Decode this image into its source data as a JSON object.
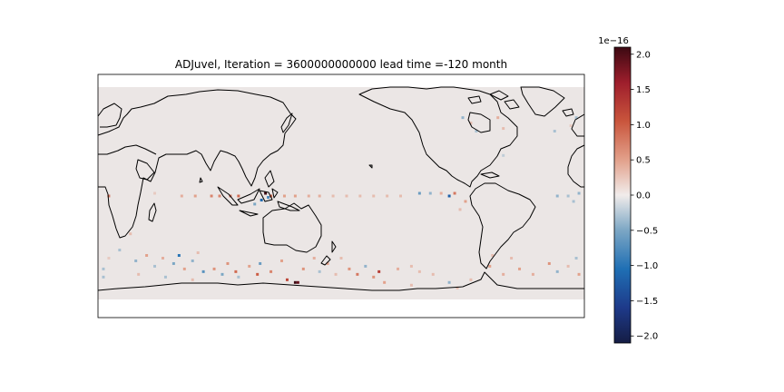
{
  "chart_data": {
    "type": "heatmap",
    "title": "ADJuvel, Iteration = 3600000000000 lead time =-120 month",
    "projection": "PlateCarree, central longitude 180",
    "lon_range": [
      0,
      360
    ],
    "lat_range": [
      -90,
      90
    ],
    "data_lat_range": [
      -78,
      80
    ],
    "background_value": 0.0,
    "colorbar": {
      "colormap": "balance",
      "vmin": -2.1,
      "vmax": 2.1,
      "exponent_label": "1e−16",
      "ticks": [
        2.0,
        1.5,
        1.0,
        0.5,
        0.0,
        -0.5,
        -1.0,
        -1.5,
        -2.0
      ],
      "tick_labels": [
        "2.0",
        "1.5",
        "1.0",
        "0.5",
        "0.0",
        "−0.5",
        "−1.0",
        "−1.5",
        "−2.0"
      ]
    },
    "cells_note": "nonzero grid cells (lon, lat in degrees; value in units of 1e-16)",
    "cells": [
      {
        "lon": 124,
        "lat": 2,
        "value": 2.1
      },
      {
        "lon": 128,
        "lat": 0,
        "value": 0.9
      },
      {
        "lon": 121,
        "lat": -3,
        "value": -1.1
      },
      {
        "lon": 126,
        "lat": -1,
        "value": -0.8
      },
      {
        "lon": 116,
        "lat": -6,
        "value": -0.5
      },
      {
        "lon": 104,
        "lat": 0,
        "value": 0.9
      },
      {
        "lon": 98,
        "lat": 0,
        "value": 0.8
      },
      {
        "lon": 90,
        "lat": 0,
        "value": 0.7
      },
      {
        "lon": 84,
        "lat": 0,
        "value": 0.7
      },
      {
        "lon": 72,
        "lat": 0,
        "value": 0.5
      },
      {
        "lon": 62,
        "lat": 0,
        "value": 0.4
      },
      {
        "lon": 42,
        "lat": 2,
        "value": 0.2
      },
      {
        "lon": 8,
        "lat": 0,
        "value": 0.8
      },
      {
        "lon": 138,
        "lat": 0,
        "value": 0.5
      },
      {
        "lon": 146,
        "lat": 0,
        "value": 0.5
      },
      {
        "lon": 156,
        "lat": 0,
        "value": 0.4
      },
      {
        "lon": 164,
        "lat": 0,
        "value": 0.4
      },
      {
        "lon": 174,
        "lat": 0,
        "value": 0.3
      },
      {
        "lon": 184,
        "lat": 0,
        "value": 0.3
      },
      {
        "lon": 194,
        "lat": 0,
        "value": 0.3
      },
      {
        "lon": 204,
        "lat": 0,
        "value": 0.3
      },
      {
        "lon": 214,
        "lat": 0,
        "value": 0.3
      },
      {
        "lon": 224,
        "lat": 0,
        "value": 0.3
      },
      {
        "lon": 238,
        "lat": 2,
        "value": -0.6
      },
      {
        "lon": 246,
        "lat": 2,
        "value": -0.4
      },
      {
        "lon": 254,
        "lat": 2,
        "value": 0.4
      },
      {
        "lon": 260,
        "lat": 0,
        "value": -1.2
      },
      {
        "lon": 264,
        "lat": 2,
        "value": 0.8
      },
      {
        "lon": 272,
        "lat": -4,
        "value": 0.5
      },
      {
        "lon": 268,
        "lat": -10,
        "value": 0.3
      },
      {
        "lon": 340,
        "lat": 0,
        "value": -0.4
      },
      {
        "lon": 348,
        "lat": 0,
        "value": -0.3
      },
      {
        "lon": 356,
        "lat": 2,
        "value": -0.4
      },
      {
        "lon": 352,
        "lat": -4,
        "value": -0.3
      },
      {
        "lon": 270,
        "lat": 58,
        "value": -0.4
      },
      {
        "lon": 276,
        "lat": 54,
        "value": 0.3
      },
      {
        "lon": 296,
        "lat": 58,
        "value": 0.4
      },
      {
        "lon": 300,
        "lat": 50,
        "value": 0.3
      },
      {
        "lon": 280,
        "lat": 48,
        "value": -0.3
      },
      {
        "lon": 354,
        "lat": 58,
        "value": -0.3
      },
      {
        "lon": 350,
        "lat": 52,
        "value": 0.2
      },
      {
        "lon": 338,
        "lat": 48,
        "value": -0.3
      },
      {
        "lon": 300,
        "lat": 30,
        "value": -0.2
      },
      {
        "lon": 24,
        "lat": -28,
        "value": 0.3
      },
      {
        "lon": 16,
        "lat": -40,
        "value": -0.3
      },
      {
        "lon": 8,
        "lat": -46,
        "value": 0.2
      },
      {
        "lon": 28,
        "lat": -48,
        "value": -0.4
      },
      {
        "lon": 36,
        "lat": -44,
        "value": 0.5
      },
      {
        "lon": 42,
        "lat": -52,
        "value": -0.3
      },
      {
        "lon": 48,
        "lat": -46,
        "value": 0.4
      },
      {
        "lon": 56,
        "lat": -50,
        "value": -0.5
      },
      {
        "lon": 60,
        "lat": -44,
        "value": -1.0
      },
      {
        "lon": 64,
        "lat": -54,
        "value": 0.5
      },
      {
        "lon": 70,
        "lat": -48,
        "value": -0.4
      },
      {
        "lon": 74,
        "lat": -42,
        "value": 0.3
      },
      {
        "lon": 78,
        "lat": -56,
        "value": -0.7
      },
      {
        "lon": 86,
        "lat": -54,
        "value": 0.6
      },
      {
        "lon": 92,
        "lat": -58,
        "value": -0.5
      },
      {
        "lon": 96,
        "lat": -50,
        "value": 0.6
      },
      {
        "lon": 102,
        "lat": -56,
        "value": 0.9
      },
      {
        "lon": 104,
        "lat": -60,
        "value": -0.3
      },
      {
        "lon": 112,
        "lat": -52,
        "value": 0.5
      },
      {
        "lon": 118,
        "lat": -58,
        "value": 1.0
      },
      {
        "lon": 120,
        "lat": -50,
        "value": -0.6
      },
      {
        "lon": 128,
        "lat": -56,
        "value": 0.7
      },
      {
        "lon": 136,
        "lat": -48,
        "value": 0.5
      },
      {
        "lon": 140,
        "lat": -62,
        "value": 1.2
      },
      {
        "lon": 146,
        "lat": -64,
        "value": 2.1
      },
      {
        "lon": 148,
        "lat": -64,
        "value": 1.9
      },
      {
        "lon": 152,
        "lat": -54,
        "value": 0.6
      },
      {
        "lon": 160,
        "lat": -46,
        "value": 0.4
      },
      {
        "lon": 164,
        "lat": -56,
        "value": -0.3
      },
      {
        "lon": 170,
        "lat": -50,
        "value": 0.5
      },
      {
        "lon": 176,
        "lat": -58,
        "value": 0.3
      },
      {
        "lon": 180,
        "lat": -46,
        "value": 0.3
      },
      {
        "lon": 186,
        "lat": -54,
        "value": 0.6
      },
      {
        "lon": 192,
        "lat": -58,
        "value": 0.8
      },
      {
        "lon": 198,
        "lat": -52,
        "value": -0.4
      },
      {
        "lon": 204,
        "lat": -60,
        "value": 0.6
      },
      {
        "lon": 208,
        "lat": -56,
        "value": 1.3
      },
      {
        "lon": 212,
        "lat": -64,
        "value": 0.5
      },
      {
        "lon": 222,
        "lat": -54,
        "value": 0.4
      },
      {
        "lon": 232,
        "lat": -52,
        "value": 0.3
      },
      {
        "lon": 238,
        "lat": -56,
        "value": 0.3
      },
      {
        "lon": 232,
        "lat": -66,
        "value": 0.3
      },
      {
        "lon": 248,
        "lat": -58,
        "value": 0.3
      },
      {
        "lon": 260,
        "lat": -64,
        "value": -0.4
      },
      {
        "lon": 266,
        "lat": -68,
        "value": 0.3
      },
      {
        "lon": 276,
        "lat": -62,
        "value": 0.3
      },
      {
        "lon": 290,
        "lat": -52,
        "value": 0.5
      },
      {
        "lon": 292,
        "lat": -44,
        "value": 0.3
      },
      {
        "lon": 300,
        "lat": -58,
        "value": 0.4
      },
      {
        "lon": 306,
        "lat": -46,
        "value": 0.3
      },
      {
        "lon": 312,
        "lat": -54,
        "value": 0.5
      },
      {
        "lon": 322,
        "lat": -58,
        "value": 0.4
      },
      {
        "lon": 334,
        "lat": -50,
        "value": 0.6
      },
      {
        "lon": 340,
        "lat": -56,
        "value": -0.4
      },
      {
        "lon": 348,
        "lat": -52,
        "value": 0.3
      },
      {
        "lon": 356,
        "lat": -58,
        "value": 0.5
      },
      {
        "lon": 354,
        "lat": -46,
        "value": -0.3
      },
      {
        "lon": 4,
        "lat": -54,
        "value": -0.3
      },
      {
        "lon": 30,
        "lat": -58,
        "value": 0.3
      },
      {
        "lon": 70,
        "lat": -62,
        "value": 0.3
      },
      {
        "lon": 50,
        "lat": -60,
        "value": -0.3
      },
      {
        "lon": 4,
        "lat": -60,
        "value": -0.3
      }
    ]
  }
}
